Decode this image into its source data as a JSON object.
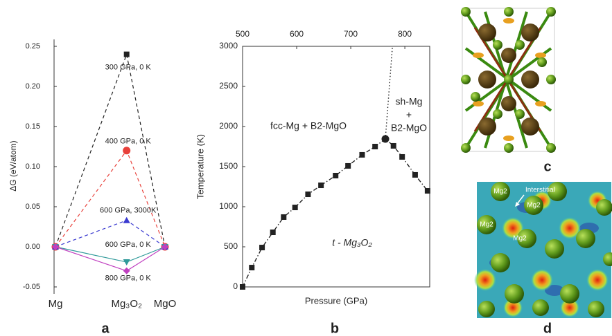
{
  "chart_data": [
    {
      "type": "line",
      "panel_label": "a",
      "y_label": "ΔG (eV/atom)",
      "categories": [
        "Mg",
        "Mg₃O₂",
        "MgO"
      ],
      "ylim": [
        -0.05,
        0.25
      ],
      "yticks": [
        -0.05,
        {
          "value": 0,
          "label": "0.00"
        },
        0.05,
        {
          "value": 0.1,
          "label": "0.10"
        },
        0.15,
        {
          "value": 0.2,
          "label": "0.20"
        },
        0.25
      ],
      "series": [
        {
          "name": "300 GPa, 0 K",
          "color": "#222222",
          "marker": "square",
          "linestyle": "dashed",
          "values": [
            0,
            0.24,
            0
          ]
        },
        {
          "name": "400 GPa, 0 K",
          "color": "#e8403a",
          "marker": "circle",
          "linestyle": "dashed",
          "values": [
            0,
            0.12,
            0
          ]
        },
        {
          "name": "600 GPa, 3000K",
          "color": "#3a3ad0",
          "marker": "triangle",
          "linestyle": "dashed",
          "values": [
            0,
            0.033,
            0
          ]
        },
        {
          "name": "600 GPa,  0 K",
          "color": "#2f9a9a",
          "marker": "triangle-down",
          "linestyle": "solid",
          "values": [
            0,
            -0.019,
            0
          ]
        },
        {
          "name": "800 GPa, 0 K",
          "color": "#c040c0",
          "marker": "diamond",
          "linestyle": "solid",
          "values": [
            0,
            -0.03,
            0
          ]
        }
      ]
    },
    {
      "type": "scatter",
      "panel_label": "b",
      "x_label": "Pressure (GPa)",
      "y_label": "Temperature (K)",
      "xlim": [
        500,
        846
      ],
      "xticks": [
        500,
        600,
        700,
        800
      ],
      "ylim": [
        0,
        3000
      ],
      "yticks": [
        0,
        500,
        1000,
        1500,
        2000,
        2500,
        3000
      ],
      "annotations": [
        "fcc-Mg + B2-MgO",
        "sh-Mg",
        "+",
        "B2-MgO",
        "t - Mg₃O₂"
      ],
      "series": [
        {
          "color": "#222222",
          "marker": "square",
          "linestyle": "dashdot",
          "x": [
            500,
            517,
            536,
            556,
            576,
            597,
            621,
            645,
            672,
            695,
            721,
            745,
            764,
            779,
            795,
            819,
            842
          ],
          "values": [
            0,
            241,
            491,
            681,
            871,
            991,
            1155,
            1267,
            1388,
            1509,
            1647,
            1750,
            1845,
            1759,
            1621,
            1397,
            1198
          ]
        },
        {
          "color": "#222222",
          "marker": "circle",
          "linestyle": "none",
          "x": [
            764
          ],
          "values": [
            1845
          ]
        },
        {
          "color": "#222222",
          "marker": "none",
          "linestyle": "dotted",
          "x": [
            764,
            777
          ],
          "values": [
            1845,
            2990
          ]
        }
      ]
    }
  ],
  "panels": [
    {
      "label": "c"
    },
    {
      "label": "d",
      "annotations": [
        "Mg2",
        "Interstitial",
        "Mg2",
        "Mg2",
        "Mg2"
      ]
    }
  ]
}
